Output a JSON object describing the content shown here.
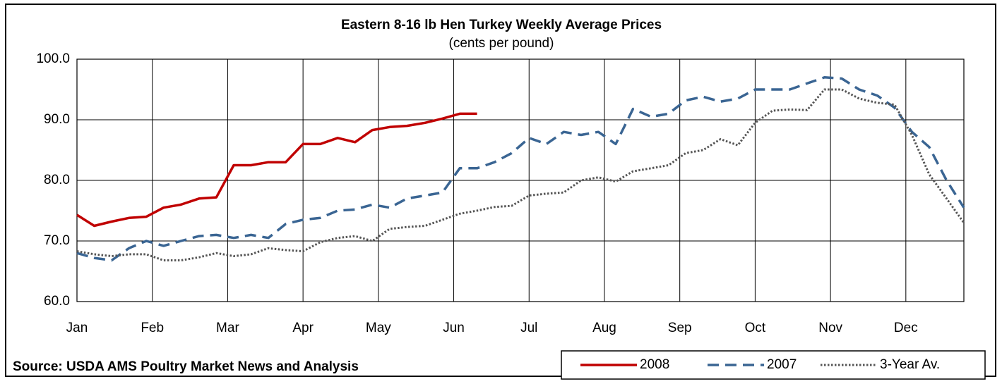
{
  "chart_data": {
    "type": "line",
    "title": "Eastern 8-16 lb Hen Turkey Weekly Average Prices",
    "subtitle": "(cents per pound)",
    "source": "Source: USDA AMS Poultry Market News and Analysis",
    "x": [
      0,
      0.23,
      0.46,
      0.69,
      0.92,
      1.15,
      1.38,
      1.62,
      1.85,
      2.08,
      2.31,
      2.54,
      2.77,
      3.0,
      3.23,
      3.46,
      3.69,
      3.92,
      4.15,
      4.38,
      4.62,
      4.85,
      5.08,
      5.31,
      5.54,
      5.77,
      6.0,
      6.23,
      6.46,
      6.69,
      6.92,
      7.15,
      7.38,
      7.62,
      7.85,
      8.08,
      8.31,
      8.54,
      8.77,
      9.0,
      9.23,
      9.46,
      9.69,
      9.92,
      10.15,
      10.38,
      10.62,
      10.85,
      11.08,
      11.31,
      11.54,
      11.77
    ],
    "xlim": [
      0,
      11.77
    ],
    "xticks": [
      {
        "value": 0,
        "label": "Jan"
      },
      {
        "value": 1,
        "label": "Feb"
      },
      {
        "value": 2,
        "label": "Mar"
      },
      {
        "value": 3,
        "label": "Apr"
      },
      {
        "value": 4,
        "label": "May"
      },
      {
        "value": 5,
        "label": "Jun"
      },
      {
        "value": 6,
        "label": "Jul"
      },
      {
        "value": 7,
        "label": "Aug"
      },
      {
        "value": 8,
        "label": "Sep"
      },
      {
        "value": 9,
        "label": "Oct"
      },
      {
        "value": 10,
        "label": "Nov"
      },
      {
        "value": 11,
        "label": "Dec"
      }
    ],
    "ylim": [
      60,
      100
    ],
    "yticks": [
      {
        "value": 60,
        "label": "60.0"
      },
      {
        "value": 70,
        "label": "70.0"
      },
      {
        "value": 80,
        "label": "80.0"
      },
      {
        "value": 90,
        "label": "90.0"
      },
      {
        "value": 100,
        "label": "100.0"
      }
    ],
    "grid": true,
    "legend": "bottom-right",
    "series": [
      {
        "name": "2008",
        "color": "#c00000",
        "style": "solid",
        "values": [
          74.3,
          72.5,
          73.2,
          73.8,
          74,
          75.5,
          76,
          77,
          77.2,
          82.5,
          82.5,
          83,
          83,
          86,
          86,
          87,
          86.3,
          88.3,
          88.8,
          89,
          89.5,
          90.2,
          91,
          91,
          null,
          null,
          null,
          null,
          null,
          null,
          null,
          null,
          null,
          null,
          null,
          null,
          null,
          null,
          null,
          null,
          null,
          null,
          null,
          null,
          null,
          null,
          null,
          null,
          null,
          null,
          null,
          null
        ]
      },
      {
        "name": "2007",
        "color": "#3a6593",
        "style": "dashed",
        "values": [
          68,
          67.2,
          66.8,
          68.8,
          70,
          69.2,
          70,
          70.8,
          71,
          70.5,
          71,
          70.5,
          72.8,
          73.5,
          73.8,
          75,
          75.2,
          76,
          75.5,
          77,
          77.5,
          78,
          82,
          82,
          83,
          84.5,
          87,
          86,
          88,
          87.5,
          88,
          86,
          91.8,
          90.5,
          91,
          93.2,
          93.8,
          93,
          93.5,
          95,
          95,
          95,
          96,
          97,
          96.8,
          95,
          94,
          92,
          88,
          85.5,
          80,
          75.5
        ]
      },
      {
        "name": "3-Year Av.",
        "color": "#555555",
        "style": "dotted",
        "values": [
          68.3,
          67.8,
          67.5,
          67.8,
          67.8,
          66.8,
          66.8,
          67.3,
          68,
          67.5,
          67.8,
          68.8,
          68.5,
          68.3,
          69.8,
          70.5,
          70.8,
          70,
          72,
          72.3,
          72.5,
          73.5,
          74.5,
          75,
          75.6,
          75.8,
          77.5,
          77.8,
          78,
          80,
          80.5,
          79.8,
          81.5,
          82,
          82.5,
          84.5,
          85,
          86.8,
          85.8,
          89.5,
          91.5,
          91.7,
          91.6,
          95,
          95,
          93.5,
          92.8,
          92.5,
          87.5,
          81,
          77,
          73
        ]
      }
    ]
  }
}
